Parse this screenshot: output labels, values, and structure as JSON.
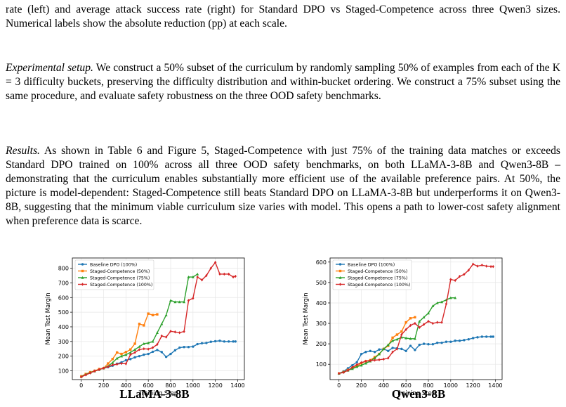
{
  "text": {
    "caption_tail": "rate (left) and average attack success rate (right) for Standard DPO vs Staged-Competence across three Qwen3 sizes. Numerical labels show the absolute reduction (pp) at each scale.",
    "setup_title": "Experimental setup.",
    "setup_body": " We construct a 50% subset of the curriculum by randomly sampling 50% of examples from each of the K = 3 difficulty buckets, preserving the difficulty distribution and within-bucket ordering. We construct a 75% subset using the same procedure, and evaluate safety robustness on the three OOD safety benchmarks.",
    "results_title": "Results.",
    "results_body": " As shown in Table 6 and Figure 5, Staged-Competence with just 75% of the training data matches or exceeds Standard DPO trained on 100% across all three OOD safety benchmarks, on both LLaMA-3-8B and Qwen3-8B – demonstrating that the curriculum enables substantially more efficient use of the available preference pairs. At 50%, the picture is model-dependent: Staged-Competence still beats Standard DPO on LLaMA-3-8B but underperforms it on Qwen3-8B, suggesting that the minimum viable curriculum size varies with model. This opens a path to lower-cost safety alignment when preference data is scarce."
  },
  "chart_data": [
    {
      "type": "line",
      "label": "LLaMA-3-8B",
      "xlabel": "Training Step",
      "ylabel": "Mean Test Margin",
      "xlim": [
        -80,
        1460
      ],
      "ylim": [
        40,
        870
      ],
      "xticks": [
        0,
        200,
        400,
        600,
        800,
        1000,
        1200,
        1400
      ],
      "yticks": [
        100,
        200,
        300,
        400,
        500,
        600,
        700,
        800
      ],
      "grid": true,
      "legend": "top-left",
      "series": [
        {
          "name": "Baseline DPO (100%)",
          "color": "#1f77b4",
          "marker": "circle",
          "x": [
            0,
            40,
            80,
            120,
            160,
            200,
            240,
            280,
            320,
            360,
            400,
            440,
            480,
            520,
            560,
            600,
            640,
            680,
            720,
            760,
            800,
            840,
            880,
            920,
            960,
            1000,
            1040,
            1080,
            1120,
            1160,
            1200,
            1240,
            1280,
            1320,
            1360,
            1380
          ],
          "y": [
            62,
            75,
            88,
            100,
            108,
            118,
            125,
            135,
            148,
            158,
            172,
            180,
            192,
            200,
            210,
            215,
            230,
            242,
            228,
            195,
            215,
            240,
            258,
            262,
            262,
            265,
            282,
            288,
            290,
            298,
            302,
            305,
            300,
            300,
            300,
            300
          ]
        },
        {
          "name": "Staged-Competence (50%)",
          "color": "#ff7f0e",
          "marker": "square",
          "x": [
            0,
            40,
            80,
            120,
            160,
            200,
            240,
            280,
            320,
            360,
            400,
            440,
            480,
            520,
            560,
            600,
            640,
            680
          ],
          "y": [
            62,
            78,
            90,
            100,
            112,
            118,
            150,
            180,
            225,
            215,
            228,
            245,
            285,
            420,
            410,
            490,
            480,
            485
          ]
        },
        {
          "name": "Staged-Competence (75%)",
          "color": "#2ca02c",
          "marker": "triangle",
          "x": [
            0,
            40,
            80,
            120,
            160,
            200,
            240,
            280,
            320,
            360,
            400,
            440,
            480,
            520,
            560,
            600,
            640,
            680,
            720,
            760,
            800,
            840,
            880,
            920,
            960,
            1000,
            1040
          ],
          "y": [
            60,
            75,
            88,
            98,
            108,
            118,
            132,
            155,
            185,
            200,
            210,
            225,
            245,
            265,
            285,
            290,
            300,
            360,
            420,
            480,
            580,
            570,
            570,
            570,
            740,
            740,
            760
          ]
        },
        {
          "name": "Staged-Competence (100%)",
          "color": "#d62728",
          "marker": "diamond",
          "x": [
            0,
            40,
            80,
            120,
            160,
            200,
            240,
            280,
            320,
            360,
            400,
            440,
            480,
            520,
            560,
            600,
            640,
            680,
            720,
            760,
            800,
            840,
            880,
            920,
            960,
            1000,
            1040,
            1080,
            1120,
            1160,
            1200,
            1240,
            1280,
            1320,
            1360,
            1380
          ],
          "y": [
            58,
            72,
            85,
            98,
            108,
            118,
            128,
            140,
            145,
            150,
            148,
            210,
            225,
            245,
            250,
            248,
            258,
            280,
            338,
            330,
            370,
            365,
            360,
            368,
            580,
            595,
            740,
            720,
            750,
            800,
            840,
            760,
            760,
            760,
            740,
            745
          ]
        }
      ]
    },
    {
      "type": "line",
      "label": "Qwen3-8B",
      "xlabel": "Training Step",
      "ylabel": "Mean Test Margin",
      "xlim": [
        -80,
        1460
      ],
      "ylim": [
        25,
        620
      ],
      "xticks": [
        0,
        200,
        400,
        600,
        800,
        1000,
        1200,
        1400
      ],
      "yticks": [
        100,
        200,
        300,
        400,
        500,
        600
      ],
      "grid": true,
      "legend": "top-left",
      "series": [
        {
          "name": "Baseline DPO (100%)",
          "color": "#1f77b4",
          "marker": "circle",
          "x": [
            0,
            40,
            80,
            120,
            160,
            200,
            240,
            280,
            320,
            360,
            400,
            440,
            480,
            520,
            560,
            600,
            640,
            680,
            720,
            760,
            800,
            840,
            880,
            920,
            960,
            1000,
            1040,
            1080,
            1120,
            1160,
            1200,
            1240,
            1280,
            1320,
            1360,
            1380
          ],
          "y": [
            55,
            65,
            80,
            95,
            110,
            150,
            160,
            165,
            160,
            172,
            175,
            165,
            180,
            178,
            175,
            165,
            190,
            170,
            195,
            200,
            198,
            198,
            205,
            205,
            210,
            210,
            215,
            215,
            218,
            222,
            228,
            232,
            235,
            235,
            235,
            235
          ]
        },
        {
          "name": "Staged-Competence (50%)",
          "color": "#ff7f0e",
          "marker": "square",
          "x": [
            0,
            40,
            80,
            120,
            160,
            200,
            240,
            280,
            320,
            360,
            400,
            440,
            480,
            520,
            560,
            600,
            640,
            680
          ],
          "y": [
            55,
            62,
            72,
            82,
            90,
            105,
            115,
            120,
            135,
            150,
            175,
            190,
            230,
            245,
            260,
            305,
            325,
            330
          ]
        },
        {
          "name": "Staged-Competence (75%)",
          "color": "#2ca02c",
          "marker": "triangle",
          "x": [
            0,
            40,
            80,
            120,
            160,
            200,
            240,
            280,
            320,
            360,
            400,
            440,
            480,
            520,
            560,
            600,
            640,
            680,
            720,
            760,
            800,
            840,
            880,
            920,
            960,
            1000,
            1040
          ],
          "y": [
            55,
            62,
            70,
            78,
            88,
            95,
            105,
            115,
            130,
            150,
            175,
            195,
            215,
            222,
            232,
            228,
            225,
            225,
            310,
            330,
            350,
            385,
            400,
            405,
            415,
            425,
            425
          ]
        },
        {
          "name": "Staged-Competence (100%)",
          "color": "#d62728",
          "marker": "diamond",
          "x": [
            0,
            40,
            80,
            120,
            160,
            200,
            240,
            280,
            320,
            360,
            400,
            440,
            480,
            520,
            560,
            600,
            640,
            680,
            720,
            760,
            800,
            840,
            880,
            920,
            960,
            1000,
            1040,
            1080,
            1120,
            1160,
            1200,
            1240,
            1280,
            1320,
            1360,
            1380
          ],
          "y": [
            55,
            60,
            70,
            85,
            98,
            108,
            115,
            118,
            120,
            122,
            125,
            130,
            160,
            175,
            245,
            270,
            290,
            300,
            280,
            295,
            310,
            300,
            305,
            305,
            395,
            515,
            510,
            530,
            540,
            560,
            590,
            580,
            585,
            580,
            578,
            578
          ]
        }
      ]
    }
  ]
}
